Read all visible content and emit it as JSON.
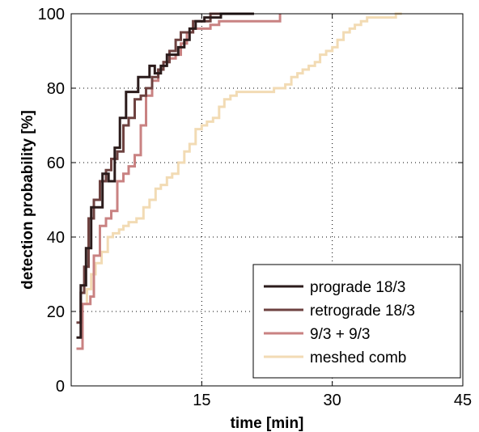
{
  "chart_data": {
    "type": "line",
    "step": true,
    "xlabel": "time [min]",
    "ylabel": "detection probability [%]",
    "xlim": [
      0,
      45
    ],
    "ylim": [
      0,
      100
    ],
    "xticks": [
      15,
      30,
      45
    ],
    "yticks": [
      0,
      20,
      40,
      60,
      80,
      100
    ],
    "grid": true,
    "legend_position": "bottom-right",
    "series": [
      {
        "name": "prograde 18/3",
        "color": "#2b1b1b",
        "x": [
          0.6,
          1.1,
          1.7,
          2.3,
          2.9,
          3.6,
          4.3,
          5.0,
          5.6,
          6.3,
          7.0,
          7.7,
          8.3,
          9.0,
          9.6,
          10.3,
          11.0,
          11.6,
          12.3,
          13.0,
          13.6,
          14.3,
          15.3,
          17.2,
          21.0
        ],
        "y": [
          13,
          27,
          37,
          48,
          48,
          57,
          55,
          64,
          72,
          79,
          79,
          83,
          83,
          86,
          84,
          86,
          89,
          89,
          91,
          93,
          96,
          98,
          99,
          100,
          100
        ]
      },
      {
        "name": "retrograde 18/3",
        "color": "#6e4240",
        "x": [
          0.6,
          1.1,
          1.5,
          2.0,
          2.6,
          3.3,
          4.0,
          4.6,
          5.3,
          6.0,
          6.6,
          7.3,
          8.0,
          8.6,
          9.3,
          10.0,
          10.6,
          11.3,
          12.0,
          12.6,
          13.3,
          14.0,
          14.6,
          16.0,
          21.0
        ],
        "y": [
          17,
          25,
          32,
          45,
          50,
          55,
          58,
          61,
          63,
          70,
          72,
          77,
          78,
          80,
          83,
          85,
          87,
          90,
          93,
          95,
          95,
          98,
          98,
          100,
          100
        ]
      },
      {
        "name": "9/3 + 9/3",
        "color": "#c98282",
        "x": [
          0.6,
          1.3,
          2.2,
          2.6,
          3.3,
          4.0,
          4.6,
          5.3,
          6.0,
          6.6,
          7.3,
          8.0,
          8.6,
          9.3,
          10.0,
          10.6,
          11.3,
          12.0,
          12.6,
          13.3,
          14.0,
          15.0,
          16.0,
          17.0,
          18.0,
          19.0,
          20.0,
          21.0,
          24.0
        ],
        "y": [
          10,
          22,
          24,
          35,
          43,
          45,
          47,
          55,
          57,
          59,
          62,
          70,
          78,
          82,
          85,
          87,
          88,
          89,
          92,
          95,
          96,
          96,
          97,
          98,
          98,
          98,
          98,
          98,
          100
        ]
      },
      {
        "name": "meshed comb",
        "color": "#f2dbb4",
        "x": [
          1.3,
          1.8,
          2.3,
          2.8,
          3.5,
          4.2,
          4.8,
          5.5,
          6.0,
          6.6,
          7.5,
          8.3,
          9.0,
          9.7,
          10.3,
          11.0,
          11.6,
          12.3,
          13.0,
          13.6,
          14.3,
          15.0,
          15.6,
          16.3,
          17.0,
          17.6,
          18.3,
          19.0,
          19.6,
          20.3,
          21.0,
          22.0,
          23.3,
          24.6,
          25.3,
          26.0,
          26.6,
          27.3,
          28.0,
          28.6,
          29.3,
          30.0,
          30.6,
          31.3,
          32.0,
          32.6,
          33.3,
          34.0,
          34.6,
          35.3,
          36.0,
          36.6,
          37.3,
          38.0
        ],
        "y": [
          22,
          26,
          30,
          33,
          36,
          40,
          41,
          42,
          43,
          44,
          45,
          48,
          50,
          53,
          54,
          56,
          57,
          60,
          63,
          65,
          69,
          70,
          71,
          72,
          75,
          77,
          78,
          79,
          79,
          79,
          79,
          79,
          80,
          81,
          83,
          84,
          85,
          86,
          87,
          89,
          90,
          91,
          93,
          95,
          96,
          97,
          98,
          99,
          99,
          99,
          99,
          99,
          100,
          100
        ]
      }
    ]
  }
}
